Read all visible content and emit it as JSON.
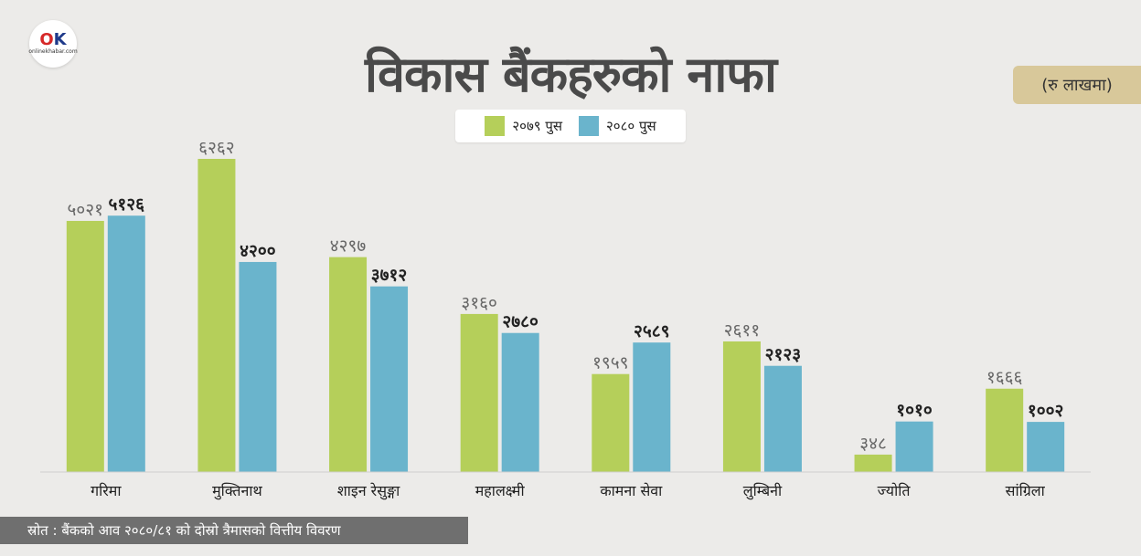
{
  "logo": {
    "mark_o": "O",
    "mark_k": "K",
    "sub": "onlinekhabar.com"
  },
  "header": {
    "title": "विकास बैंकहरुको नाफा",
    "unit": "(रु लाखमा)"
  },
  "source": "स्रोत : बैंकको आव २०८०/८१ को दोस्रो त्रैमासको वित्तीय विवरण",
  "colors": {
    "series1": "#b5cf5a",
    "series2": "#6ab4cc",
    "background": "#ecebe9"
  },
  "chart_data": {
    "type": "bar",
    "categories": [
      "गरिमा",
      "मुक्तिनाथ",
      "शाइन रेसुङ्गा",
      "महालक्ष्मी",
      "कामना सेवा",
      "लुम्बिनी",
      "ज्योति",
      "सांग्रिला"
    ],
    "series": [
      {
        "name": "२०७९ पुस",
        "values": [
          5021,
          6262,
          4297,
          3160,
          1959,
          2611,
          348,
          1666
        ],
        "labels": [
          "५०२१",
          "६२६२",
          "४२९७",
          "३१६०",
          "१९५९",
          "२६११",
          "३४८",
          "१६६६"
        ]
      },
      {
        "name": "२०८० पुस",
        "values": [
          5126,
          4200,
          3712,
          2780,
          2589,
          2123,
          1010,
          1002
        ],
        "labels": [
          "५१२६",
          "४२००",
          "३७१२",
          "२७८०",
          "२५८९",
          "२१२३",
          "१०१०",
          "१००२"
        ]
      }
    ],
    "ylim": [
      0,
      6262
    ],
    "grid": false,
    "legend": "top-center"
  }
}
